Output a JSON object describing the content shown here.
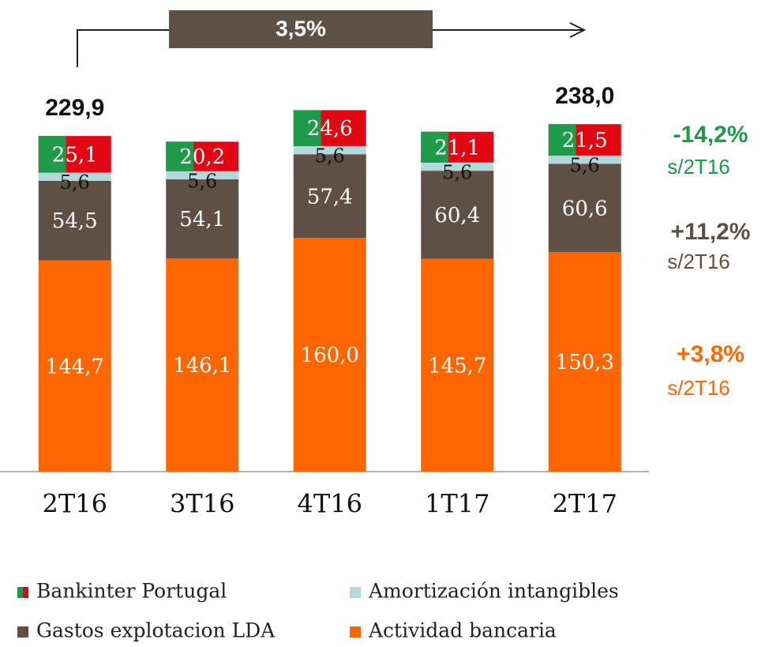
{
  "chart_data": {
    "type": "stacked_bar",
    "categories": [
      "2T16",
      "3T16",
      "4T16",
      "1T17",
      "2T17"
    ],
    "series": [
      {
        "name": "Actividad bancaria",
        "color": "#ff6600",
        "label_color": "#ffffff",
        "values": [
          144.7,
          146.1,
          160.0,
          145.7,
          150.3
        ],
        "value_labels": [
          "144,7",
          "146,1",
          "160,0",
          "145,7",
          "150,3"
        ]
      },
      {
        "name": "Gastos explotacion LDA",
        "color": "#5f5046",
        "label_color": "#ffffff",
        "values": [
          54.5,
          54.1,
          57.4,
          60.4,
          60.6
        ],
        "value_labels": [
          "54,5",
          "54,1",
          "57,4",
          "60,4",
          "60,6"
        ]
      },
      {
        "name": "Amortización intangibles",
        "color": "#b3d9dd",
        "label_color": "#111111",
        "values": [
          5.6,
          5.6,
          5.6,
          5.6,
          5.6
        ],
        "value_labels": [
          "5,6",
          "5,6",
          "5,6",
          "5,6",
          "5,6"
        ]
      },
      {
        "name": "Bankinter Portugal",
        "colors": [
          "#1e9a4b",
          "#e30613"
        ],
        "label_color": "#ffffff",
        "values": [
          25.1,
          20.2,
          24.6,
          21.1,
          21.5
        ],
        "value_labels": [
          "25,1",
          "20,2",
          "24,6",
          "21,1",
          "21,5"
        ]
      }
    ],
    "totals": [
      229.9,
      null,
      null,
      null,
      238.0
    ],
    "total_labels": [
      "229,9",
      null,
      null,
      null,
      "238,0"
    ],
    "growth_label": "3,5%",
    "annotations": [
      {
        "text": "-14,2%",
        "sub": "s/2T16",
        "color": "#1e9a4b"
      },
      {
        "text": "+11,2%",
        "sub": "s/2T16",
        "color": "#5f5046"
      },
      {
        "text": "+3,8%",
        "sub": "s/2T16",
        "color": "#ff6600"
      }
    ],
    "ylim": [
      0,
      250
    ]
  }
}
